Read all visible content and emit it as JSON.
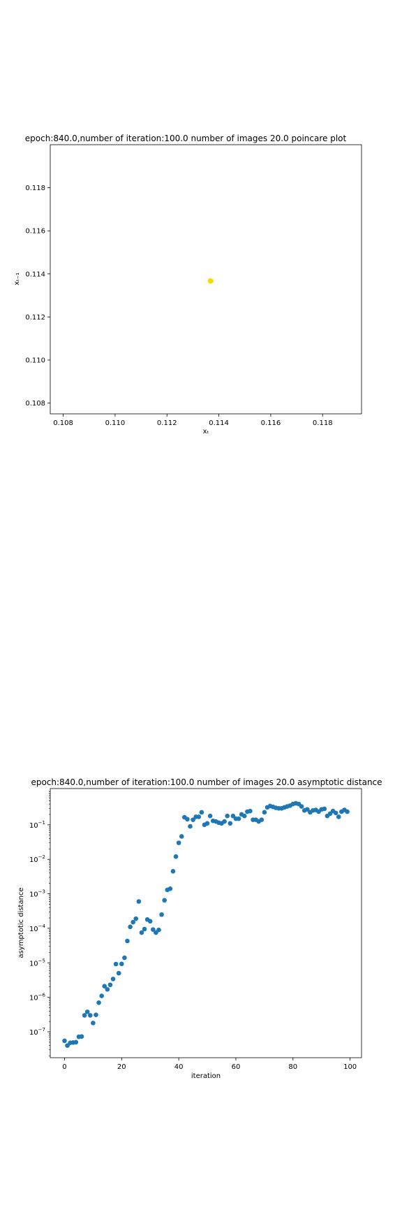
{
  "colors": {
    "point_yellow": "#f5d90a",
    "point_blue": "#1f77b4",
    "axis": "#000000"
  },
  "chart_data": [
    {
      "type": "scatter",
      "title": "epoch:840.0,number of iteration:100.0 number of images 20.0 poincare plot",
      "xlabel": "xₜ",
      "ylabel": "xₜ₋₁",
      "xlim": [
        0.1075,
        0.1195
      ],
      "ylim": [
        0.1075,
        0.12
      ],
      "xticks": [
        0.108,
        0.11,
        0.112,
        0.114,
        0.116,
        0.118
      ],
      "yticks": [
        0.108,
        0.11,
        0.112,
        0.114,
        0.116,
        0.118
      ],
      "tick_labels": [
        "0.108",
        "0.110",
        "0.112",
        "0.114",
        "0.116",
        "0.118"
      ],
      "points": [
        {
          "x": 0.11365,
          "y": 0.11366
        },
        {
          "x": 0.11368,
          "y": 0.11369
        },
        {
          "x": 0.1137,
          "y": 0.11365
        },
        {
          "x": 0.11366,
          "y": 0.11371
        },
        {
          "x": 0.11372,
          "y": 0.11368
        },
        {
          "x": 0.11367,
          "y": 0.11364
        }
      ],
      "grid": false
    },
    {
      "type": "scatter",
      "title": "epoch:840.0,number of iteration:100.0  number of images 20.0 asymptotic distance",
      "xlabel": "iteration",
      "ylabel": "asymptotic distance",
      "yscale": "log",
      "xlim": [
        -5,
        104
      ],
      "ylim_log10": [
        -7.75,
        0.05
      ],
      "xticks": [
        0,
        20,
        40,
        60,
        80,
        100
      ],
      "xtick_labels": [
        "0",
        "20",
        "40",
        "60",
        "80",
        "100"
      ],
      "yticks_log10": [
        -7,
        -6,
        -5,
        -4,
        -3,
        -2,
        -1
      ],
      "ytick_labels_base": "10",
      "ytick_labels_exp": [
        "−7",
        "−6",
        "−5",
        "−4",
        "−3",
        "−2",
        "−1"
      ],
      "x": [
        0,
        1,
        2,
        3,
        4,
        5,
        6,
        7,
        8,
        9,
        10,
        11,
        12,
        13,
        14,
        15,
        16,
        17,
        18,
        19,
        20,
        21,
        22,
        23,
        24,
        25,
        26,
        27,
        28,
        29,
        30,
        31,
        32,
        33,
        34,
        35,
        36,
        37,
        38,
        39,
        40,
        41,
        42,
        43,
        44,
        45,
        46,
        47,
        48,
        49,
        50,
        51,
        52,
        53,
        54,
        55,
        56,
        57,
        58,
        59,
        60,
        61,
        62,
        63,
        64,
        65,
        66,
        67,
        68,
        69,
        70,
        71,
        72,
        73,
        74,
        75,
        76,
        77,
        78,
        79,
        80,
        81,
        82,
        83,
        84,
        85,
        86,
        87,
        88,
        89,
        90,
        91,
        92,
        93,
        94,
        95,
        96,
        97,
        98,
        99
      ],
      "y": [
        5.5e-08,
        4e-08,
        4.8e-08,
        4.9e-08,
        5e-08,
        7.2e-08,
        7.3e-08,
        3e-07,
        3.8e-07,
        3e-07,
        1.8e-07,
        3.1e-07,
        7e-07,
        1.1e-06,
        2.1e-06,
        1.7e-06,
        2.3e-06,
        3.4e-06,
        9.2e-06,
        5e-06,
        9.3e-06,
        1.4e-05,
        4.3e-05,
        0.00011,
        0.00015,
        0.00019,
        0.0006,
        7.5e-05,
        9.5e-05,
        0.00018,
        0.00016,
        9.2e-05,
        7.5e-05,
        9e-05,
        0.00025,
        0.00065,
        0.0013,
        0.0014,
        0.0045,
        0.012,
        0.03,
        0.046,
        0.165,
        0.145,
        0.09,
        0.14,
        0.17,
        0.17,
        0.23,
        0.1,
        0.11,
        0.18,
        0.13,
        0.125,
        0.115,
        0.11,
        0.125,
        0.18,
        0.11,
        0.18,
        0.15,
        0.15,
        0.2,
        0.18,
        0.24,
        0.25,
        0.14,
        0.14,
        0.125,
        0.14,
        0.23,
        0.32,
        0.35,
        0.33,
        0.31,
        0.3,
        0.3,
        0.32,
        0.34,
        0.36,
        0.4,
        0.42,
        0.4,
        0.34,
        0.26,
        0.28,
        0.23,
        0.26,
        0.27,
        0.24,
        0.28,
        0.29,
        0.18,
        0.21,
        0.25,
        0.22,
        0.17,
        0.24,
        0.27,
        0.24
      ],
      "grid": false
    }
  ]
}
